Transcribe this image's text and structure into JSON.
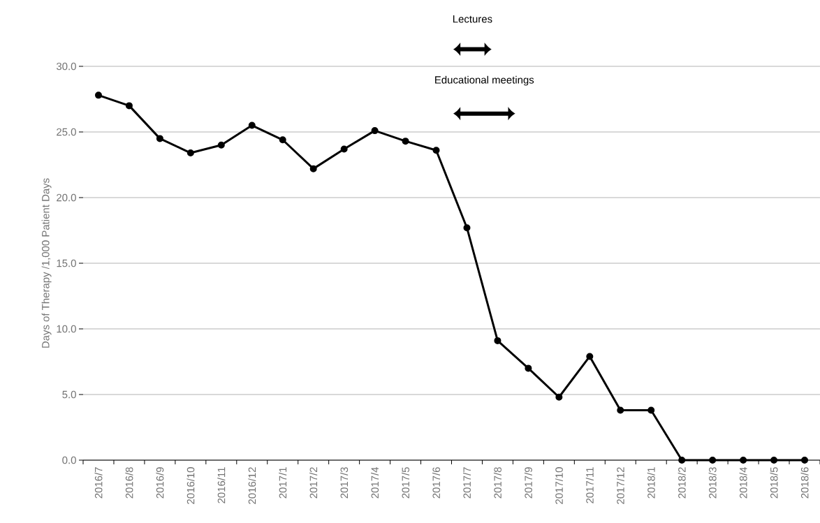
{
  "chart_data": {
    "type": "line",
    "ylabel": "Days of Therapy /1,000 Patient Days",
    "categories": [
      "2016/7",
      "2016/8",
      "2016/9",
      "2016/10",
      "2016/11",
      "2016/12",
      "2017/1",
      "2017/2",
      "2017/3",
      "2017/4",
      "2017/5",
      "2017/6",
      "2017/7",
      "2017/8",
      "2017/9",
      "2017/10",
      "2017/11",
      "2017/12",
      "2018/1",
      "2018/2",
      "2018/3",
      "2018/4",
      "2018/5",
      "2018/6"
    ],
    "series": [
      {
        "color": "#000000",
        "values": [
          27.8,
          27.0,
          24.5,
          23.4,
          24.0,
          25.5,
          24.4,
          22.2,
          23.7,
          25.1,
          24.3,
          23.6,
          17.7,
          9.1,
          7.0,
          4.8,
          7.9,
          3.8,
          3.8,
          0,
          0,
          0,
          0,
          0
        ]
      }
    ],
    "ylim": [
      0,
      30
    ],
    "yticks": [
      {
        "value": 0,
        "label": "0.0"
      },
      {
        "value": 5,
        "label": "5.0"
      },
      {
        "value": 10,
        "label": "10.0"
      },
      {
        "value": 15,
        "label": "15.0"
      },
      {
        "value": 20,
        "label": "20.0"
      },
      {
        "value": 25,
        "label": "25.0"
      },
      {
        "value": 30,
        "label": "30.0"
      }
    ],
    "grid": "y",
    "marker": "circle",
    "line_style": "solid",
    "annotations": [
      "Lectures",
      "Educational meetings"
    ]
  }
}
